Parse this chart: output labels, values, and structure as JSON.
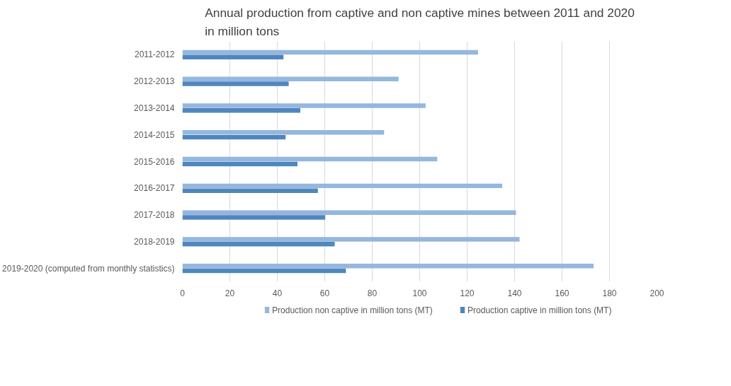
{
  "chart_data": {
    "type": "bar",
    "orientation": "horizontal",
    "title": "Annual production from captive and non captive mines between 2011 and 2020\nin million tons",
    "categories": [
      "2011-2012",
      "2012-2013",
      "2013-2014",
      "2014-2015",
      "2015-2016",
      "2016-2017",
      "2017-2018",
      "2018-2019",
      "2019-2020 (computed from monthly statistics)"
    ],
    "series": [
      {
        "name": "Production non captive in million tons (MT)",
        "color": "#95b7de",
        "values": [
          124.6,
          91.1,
          102.5,
          85.0,
          107.4,
          134.8,
          140.6,
          142.1,
          173.3
        ]
      },
      {
        "name": "Production captive in million tons (MT)",
        "color": "#4f86bd",
        "values": [
          42.6,
          44.8,
          49.7,
          43.5,
          48.5,
          57.1,
          60.2,
          64.2,
          68.9
        ]
      }
    ],
    "xlim": [
      0,
      200
    ],
    "xticks": [
      0,
      20,
      40,
      60,
      80,
      100,
      120,
      140,
      160,
      180,
      200
    ],
    "grid": "x",
    "legend": "bottom"
  }
}
